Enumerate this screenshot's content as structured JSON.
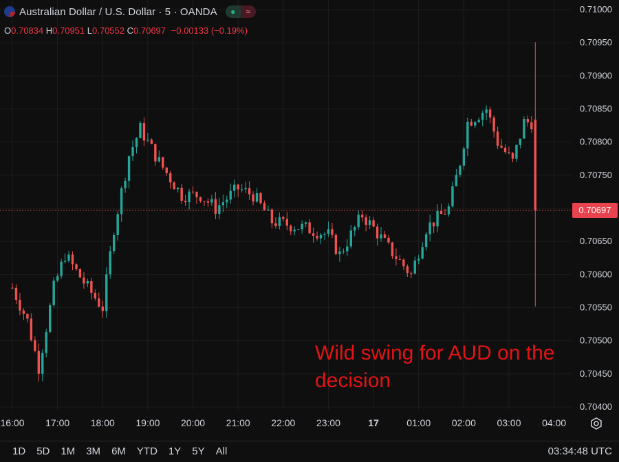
{
  "header": {
    "title": "Australian Dollar / U.S. Dollar · 5 · OANDA",
    "pill_left_icon": "dot-icon",
    "pill_right_icon": "wave-icon"
  },
  "ohlc": {
    "o_label": "O",
    "o": "0.70834",
    "h_label": "H",
    "h": "0.70951",
    "l_label": "L",
    "l": "0.70552",
    "c_label": "C",
    "c": "0.70697",
    "change": "−0.00133 (−0.19%)"
  },
  "annotation": "Wild swing for AUD on the decision",
  "price_tag": "0.70697",
  "footer": {
    "ranges": [
      "1D",
      "5D",
      "1M",
      "3M",
      "6M",
      "YTD",
      "1Y",
      "5Y",
      "All"
    ],
    "clock": "03:34:48 UTC"
  },
  "colors": {
    "up": "#26a69a",
    "down": "#ef5350",
    "annotation": "#e11414",
    "background": "#0f0f0f"
  },
  "chart_data": {
    "type": "candlestick",
    "title": "Australian Dollar / U.S. Dollar · 5 · OANDA",
    "y_ticks": [
      "0.71000",
      "0.70950",
      "0.70900",
      "0.70850",
      "0.70800",
      "0.70750",
      "0.70700",
      "0.70650",
      "0.70600",
      "0.70550",
      "0.70500",
      "0.70450",
      "0.70400"
    ],
    "x_ticks": [
      "16:00",
      "17:00",
      "18:00",
      "19:00",
      "20:00",
      "21:00",
      "22:00",
      "23:00",
      "17",
      "01:00",
      "02:00",
      "03:00",
      "04:00"
    ],
    "ylim": [
      0.704,
      0.71
    ],
    "x_range": [
      "15:50",
      "04:10"
    ],
    "last_price": 0.70697,
    "grid": true,
    "anchors": [
      {
        "time": "16:00",
        "price": 0.7058
      },
      {
        "time": "16:20",
        "price": 0.7053
      },
      {
        "time": "16:35",
        "price": 0.7046
      },
      {
        "time": "16:55",
        "price": 0.7058
      },
      {
        "time": "17:10",
        "price": 0.7063
      },
      {
        "time": "17:40",
        "price": 0.7058
      },
      {
        "time": "18:00",
        "price": 0.7055
      },
      {
        "time": "18:15",
        "price": 0.7067
      },
      {
        "time": "18:35",
        "price": 0.7078
      },
      {
        "time": "18:50",
        "price": 0.7082
      },
      {
        "time": "19:15",
        "price": 0.7077
      },
      {
        "time": "19:45",
        "price": 0.7072
      },
      {
        "time": "20:10",
        "price": 0.7072
      },
      {
        "time": "20:30",
        "price": 0.707
      },
      {
        "time": "21:00",
        "price": 0.7073
      },
      {
        "time": "21:20",
        "price": 0.7072
      },
      {
        "time": "21:45",
        "price": 0.7068
      },
      {
        "time": "22:30",
        "price": 0.7067
      },
      {
        "time": "23:00",
        "price": 0.7066
      },
      {
        "time": "23:15",
        "price": 0.7063
      },
      {
        "time": "23:45",
        "price": 0.7069
      },
      {
        "time": "24:00",
        "price": 0.7067
      },
      {
        "time": "24:20",
        "price": 0.7064
      },
      {
        "time": "24:50",
        "price": 0.706
      },
      {
        "time": "25:10",
        "price": 0.7067
      },
      {
        "time": "25:40",
        "price": 0.707
      },
      {
        "time": "25:55",
        "price": 0.7077
      },
      {
        "time": "26:05",
        "price": 0.7083
      },
      {
        "time": "26:30",
        "price": 0.7085
      },
      {
        "time": "26:45",
        "price": 0.708
      },
      {
        "time": "27:05",
        "price": 0.7077
      },
      {
        "time": "27:20",
        "price": 0.7083
      }
    ],
    "final_candle": {
      "time": "27:35",
      "open": 0.70834,
      "high": 0.70951,
      "low": 0.70552,
      "close": 0.70697
    }
  }
}
